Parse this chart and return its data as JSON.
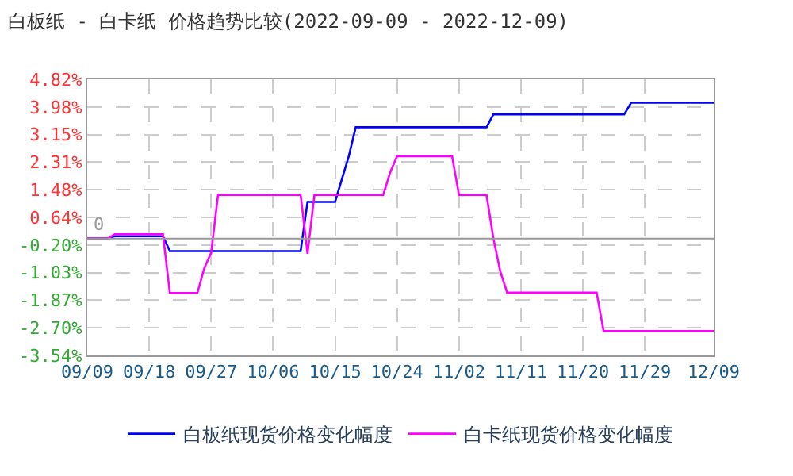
{
  "chart_data": {
    "type": "line",
    "title": "白板纸 - 白卡纸 价格趋势比较(2022-09-09 - 2022-12-09)",
    "series": [
      {
        "name": "白板纸现货价格变化幅度",
        "color": "#0000ff",
        "x": [
          "2022-09-09",
          "2022-09-12",
          "2022-09-13",
          "2022-09-20",
          "2022-09-21",
          "2022-10-10",
          "2022-10-11",
          "2022-10-15",
          "2022-10-17",
          "2022-10-18",
          "2022-11-06",
          "2022-11-07",
          "2022-11-26",
          "2022-11-27",
          "2022-12-09"
        ],
        "values": [
          0,
          0,
          0.07,
          0.07,
          -0.38,
          -0.38,
          1.11,
          1.11,
          2.5,
          3.37,
          3.37,
          3.76,
          3.76,
          4.11,
          4.11
        ]
      },
      {
        "name": "白卡纸现货价格变化幅度",
        "color": "#ff00ff",
        "x": [
          "2022-09-09",
          "2022-09-12",
          "2022-09-13",
          "2022-09-20",
          "2022-09-21",
          "2022-09-25",
          "2022-09-26",
          "2022-09-27",
          "2022-09-28",
          "2022-10-10",
          "2022-10-11",
          "2022-10-12",
          "2022-10-22",
          "2022-10-23",
          "2022-10-24",
          "2022-11-01",
          "2022-11-02",
          "2022-11-06",
          "2022-11-07",
          "2022-11-08",
          "2022-11-09",
          "2022-11-22",
          "2022-11-23",
          "2022-12-09"
        ],
        "values": [
          0,
          0,
          0.13,
          0.13,
          -1.65,
          -1.65,
          -0.9,
          -0.43,
          1.32,
          1.32,
          -0.46,
          1.32,
          1.32,
          2.0,
          2.49,
          2.49,
          1.32,
          1.32,
          0,
          -1.0,
          -1.64,
          -1.64,
          -2.8,
          -2.8
        ]
      }
    ],
    "xlim": [
      "2022-09-09",
      "2022-12-09"
    ],
    "xticks": [
      {
        "value": "2022-09-09",
        "label": "09/09"
      },
      {
        "value": "2022-09-18",
        "label": "09/18"
      },
      {
        "value": "2022-09-27",
        "label": "09/27"
      },
      {
        "value": "2022-10-06",
        "label": "10/06"
      },
      {
        "value": "2022-10-15",
        "label": "10/15"
      },
      {
        "value": "2022-10-24",
        "label": "10/24"
      },
      {
        "value": "2022-11-02",
        "label": "11/02"
      },
      {
        "value": "2022-11-11",
        "label": "11/11"
      },
      {
        "value": "2022-11-20",
        "label": "11/20"
      },
      {
        "value": "2022-11-29",
        "label": "11/29"
      },
      {
        "value": "2022-12-09",
        "label": "12/09"
      }
    ],
    "ylim": [
      -3.54,
      4.82
    ],
    "yticks": [
      {
        "value": 4.82,
        "label": "4.82%"
      },
      {
        "value": 3.98,
        "label": "3.98%"
      },
      {
        "value": 3.15,
        "label": "3.15%"
      },
      {
        "value": 2.31,
        "label": "2.31%"
      },
      {
        "value": 1.48,
        "label": "1.48%"
      },
      {
        "value": 0.64,
        "label": "0.64%"
      },
      {
        "value": -0.2,
        "label": "-0.20%"
      },
      {
        "value": -1.03,
        "label": "-1.03%"
      },
      {
        "value": -1.87,
        "label": "-1.87%"
      },
      {
        "value": -2.7,
        "label": "-2.70%"
      },
      {
        "value": -3.54,
        "label": "-3.54%"
      }
    ],
    "ref_lines": [
      {
        "axis": "y",
        "value": 0,
        "label": "0",
        "color": "#999999"
      }
    ],
    "grid": true,
    "legend": "bottom"
  }
}
